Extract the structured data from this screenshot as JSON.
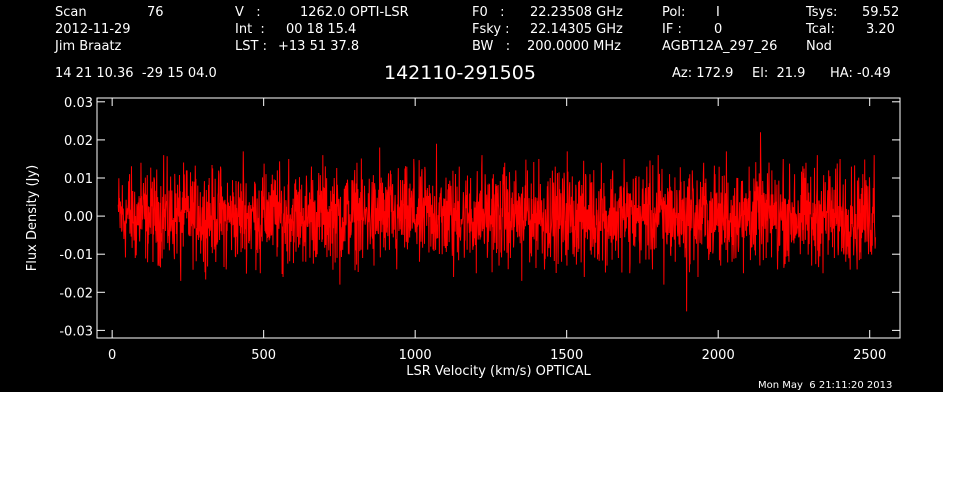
{
  "header": {
    "scan_label": "Scan",
    "scan_value": "76",
    "date": "2012-11-29",
    "observer": "Jim Braatz",
    "v_label": "V   :",
    "v_value": "1262.0 OPTI-LSR",
    "int_label": "Int  :",
    "int_value": "00 18 15.4",
    "lst_label": "LST :",
    "lst_value": "+13 51 37.8",
    "f0_label": "F0   :",
    "f0_value": "22.23508 GHz",
    "fsky_label": "Fsky :",
    "fsky_value": "22.14305 GHz",
    "bw_label": "BW   :",
    "bw_value": "200.0000 MHz",
    "pol_label": "Pol:",
    "pol_value": "I",
    "if_label": "IF :",
    "if_value": "0",
    "project": "AGBT12A_297_26",
    "tsys_label": "Tsys:",
    "tsys_value": "59.52",
    "tcal_label": "Tcal:",
    "tcal_value": "3.20",
    "mode": "Nod",
    "coords": "14 21 10.36  -29 15 04.0",
    "source": "142110-291505",
    "az": "Az: 172.9",
    "el": "El:  21.9",
    "ha": "HA: -0.49",
    "timestamp": "Mon May  6 21:11:20 2013"
  },
  "chart_data": {
    "type": "line",
    "xlabel": "LSR Velocity (km/s) OPTICAL",
    "ylabel": "Flux Density (Jy)",
    "xlim": [
      -50,
      2600
    ],
    "ylim": [
      -0.032,
      0.031
    ],
    "x_ticks": [
      0,
      500,
      1000,
      1500,
      2000,
      2500
    ],
    "x_tick_labels": [
      "0",
      "500",
      "1000",
      "1500",
      "2000",
      "2500"
    ],
    "y_ticks": [
      -0.03,
      -0.02,
      -0.01,
      0.0,
      0.01,
      0.02,
      0.03
    ],
    "y_tick_labels": [
      "-0.03",
      "-0.02",
      "-0.01",
      "0.00",
      "0.01",
      "0.02",
      "0.03"
    ],
    "series": [
      {
        "color": "#ff0000",
        "x_start": 20,
        "x_end": 2520,
        "noise_rms": 0.0065,
        "baseline": 0.0,
        "values": [
          0.003,
          -0.006,
          0.011,
          -0.011,
          0.014,
          -0.004,
          0.009,
          -0.013,
          0.016,
          -0.009,
          0.006,
          -0.017,
          0.012,
          -0.002,
          0.008,
          -0.012,
          0.01,
          -0.008,
          0.013,
          -0.014,
          0.004,
          -0.01,
          0.017,
          -0.007,
          0.009,
          -0.015,
          0.011,
          -0.005,
          0.012,
          -0.016,
          0.015,
          -0.003,
          0.007,
          -0.012,
          0.013,
          -0.01,
          0.016,
          -0.006,
          0.01,
          -0.018,
          0.008,
          -0.004,
          0.014,
          -0.011,
          0.006,
          -0.013,
          0.018,
          -0.009,
          0.011,
          -0.014,
          0.009,
          -0.007,
          0.015,
          -0.012,
          0.012,
          -0.008,
          0.019,
          -0.01,
          0.007,
          -0.016,
          0.013,
          -0.006,
          0.01,
          -0.015,
          0.016,
          -0.009,
          0.011,
          -0.013,
          0.014,
          -0.011,
          0.008,
          -0.017,
          0.012,
          -0.005,
          0.015,
          -0.014,
          0.01,
          -0.008,
          0.013,
          -0.012,
          0.017,
          -0.01,
          0.009,
          -0.016,
          0.011,
          -0.007,
          0.014,
          -0.013,
          0.012,
          -0.011,
          0.015,
          -0.015,
          0.01,
          -0.009,
          0.013,
          -0.014,
          0.016,
          -0.018,
          0.011,
          -0.012,
          0.009,
          -0.025,
          0.012,
          -0.016,
          0.014,
          -0.01,
          0.011,
          -0.013,
          0.017,
          -0.012,
          0.01,
          -0.015,
          0.013,
          -0.009,
          0.022,
          -0.011,
          0.012,
          -0.014,
          0.015,
          -0.012,
          0.011,
          -0.01,
          0.014,
          -0.013,
          0.016,
          -0.015,
          0.012,
          -0.011,
          0.015,
          -0.012,
          0.013,
          -0.014,
          0.011,
          -0.01,
          0.016,
          -0.017
        ]
      }
    ]
  },
  "colors": {
    "background": "#000000",
    "trace": "#ff0000",
    "axes": "#ffffff"
  }
}
